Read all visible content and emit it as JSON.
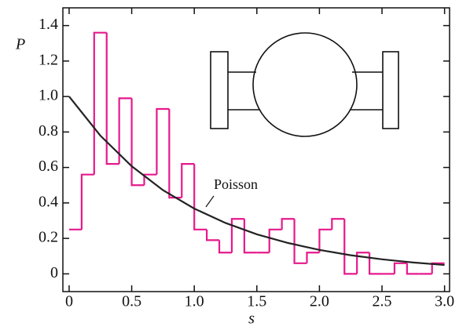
{
  "chart_data": {
    "type": "histogram",
    "xlabel": "s",
    "ylabel": "P",
    "bins": [
      0,
      0.1,
      0.2,
      0.3,
      0.4,
      0.5,
      0.6,
      0.7,
      0.8,
      0.9,
      1.0,
      1.1,
      1.2,
      1.3,
      1.4,
      1.5,
      1.6,
      1.7,
      1.8,
      1.9,
      2.0,
      2.1,
      2.2,
      2.3,
      2.4,
      2.5,
      2.6,
      2.7,
      2.8,
      2.9,
      3.0
    ],
    "counts": [
      0.25,
      0.56,
      1.36,
      0.62,
      0.99,
      0.5,
      0.56,
      0.93,
      0.43,
      0.62,
      0.25,
      0.19,
      0.12,
      0.31,
      0.12,
      0.12,
      0.25,
      0.31,
      0.06,
      0.12,
      0.25,
      0.31,
      0,
      0.12,
      0,
      0,
      0.06,
      0,
      0,
      0.06
    ],
    "color": "#e6198c",
    "curve": {
      "name": "Poisson",
      "color": "#222222",
      "x": [
        0,
        0.25,
        0.5,
        0.75,
        1.0,
        1.25,
        1.5,
        1.75,
        2.0,
        2.25,
        2.5,
        2.75,
        3.0
      ],
      "values": [
        1.0,
        0.779,
        0.607,
        0.472,
        0.368,
        0.287,
        0.223,
        0.174,
        0.135,
        0.105,
        0.082,
        0.064,
        0.05
      ]
    },
    "xlim": [
      -0.05,
      3.04
    ],
    "ylim": [
      -0.1,
      1.5
    ],
    "xticks": [
      0,
      0.5,
      {
        "value": 1,
        "label": "1.0"
      },
      1.5,
      {
        "value": 2,
        "label": "2.0"
      },
      2.5,
      {
        "value": 3,
        "label": "3.0"
      }
    ],
    "yticks": [
      0,
      0.2,
      0.4,
      0.6,
      0.8,
      {
        "value": 1,
        "label": "1.0"
      },
      1.2,
      1.4
    ]
  }
}
